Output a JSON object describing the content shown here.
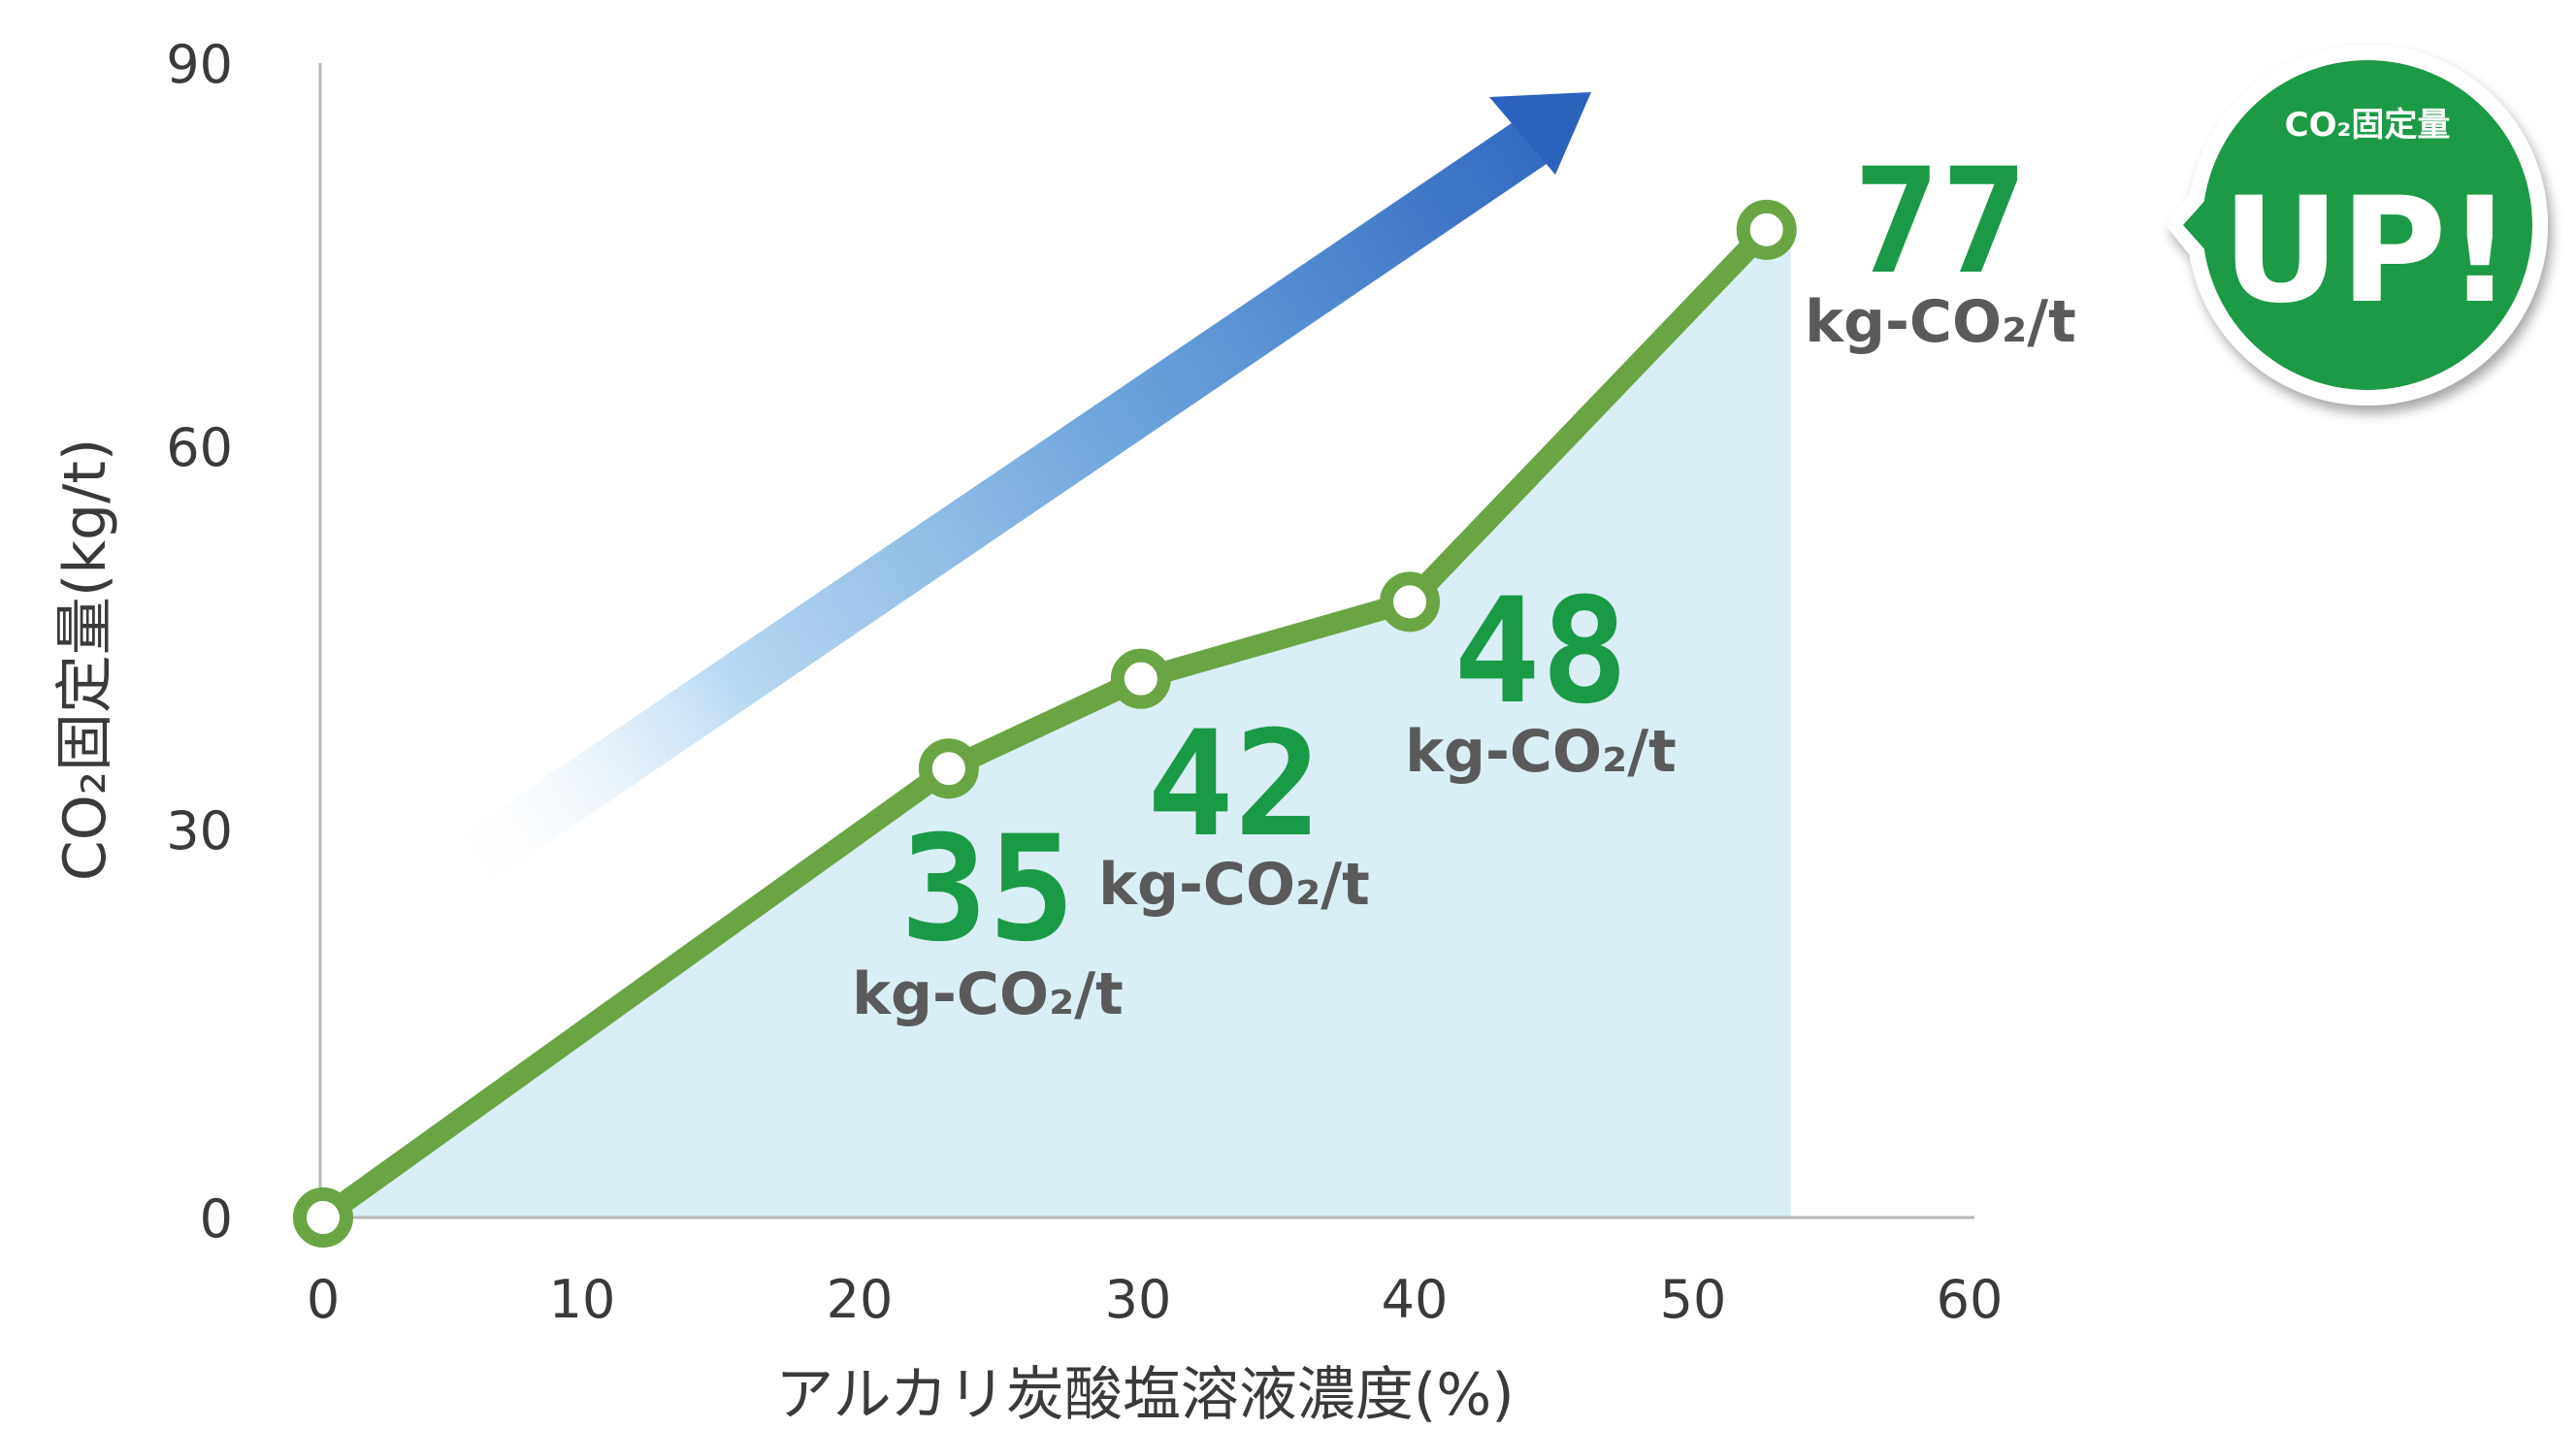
{
  "chart_data": {
    "type": "line",
    "xlabel": "アルカリ炭酸塩溶液濃度(%)",
    "ylabel": "CO₂固定量(kg/t)",
    "xlim": [
      0,
      60
    ],
    "ylim": [
      0,
      90
    ],
    "x_ticks": [
      "0",
      "10",
      "20",
      "30",
      "40",
      "50",
      "60"
    ],
    "y_ticks": [
      "0",
      "30",
      "60",
      "90"
    ],
    "x": [
      0,
      22.8,
      29.8,
      39.6,
      52.6
    ],
    "y": [
      0,
      35,
      42,
      48,
      77
    ],
    "point_labels": [
      {
        "value": "35",
        "unit": "kg-CO₂/t"
      },
      {
        "value": "42",
        "unit": "kg-CO₂/t"
      },
      {
        "value": "48",
        "unit": "kg-CO₂/t"
      },
      {
        "value": "77",
        "unit": "kg-CO₂/t"
      }
    ],
    "area_fill_color": "#daeef6",
    "line_color": "#6aa544",
    "label_color": "#1a9a46",
    "grid": false
  },
  "badge": {
    "top_text": "CO₂固定量",
    "main_text": "UP!",
    "color": "#1e9a45"
  },
  "trend_arrow": {
    "color": "#2f6cc0",
    "icon": "trend-up-arrow-icon"
  }
}
